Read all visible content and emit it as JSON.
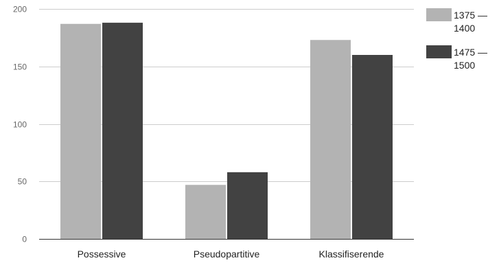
{
  "chart_data": {
    "type": "bar",
    "categories": [
      "Possessive",
      "Pseudopartitive",
      "Klassifiserende"
    ],
    "series": [
      {
        "name": "1375 — 1400",
        "name_lines": [
          "1375 —",
          "1400"
        ],
        "color": "#b3b3b3",
        "values": [
          187,
          47,
          173
        ]
      },
      {
        "name": "1475 — 1500",
        "name_lines": [
          "1475 —",
          "1500"
        ],
        "color": "#424242",
        "values": [
          188,
          58,
          160
        ]
      }
    ],
    "ylim": [
      0,
      200
    ],
    "yticks": [
      0,
      50,
      100,
      150,
      200
    ],
    "grid": true,
    "legend_position": "right",
    "axis_text_color": "#666666",
    "category_text_color": "#222222",
    "gridline_color": "#cccccc",
    "baseline_color": "#333333"
  }
}
